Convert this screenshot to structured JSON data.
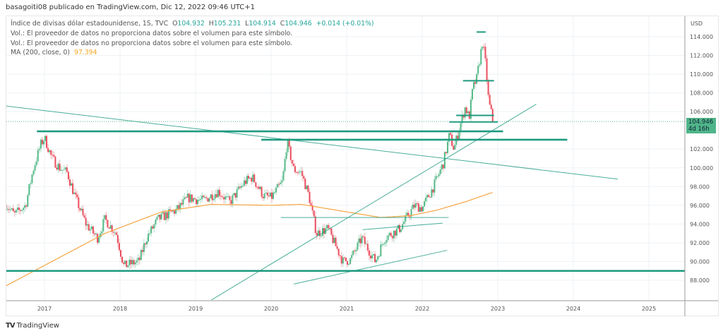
{
  "publish_line": "basagoiti08 publicado en TradingView.com, Dic 12, 2022 09:46 UTC+1",
  "legend": {
    "symbol": "Índice de divisas dólar estadounidense, 1S, TVC",
    "open_label": "O",
    "open": "104.932",
    "high_label": "H",
    "high": "105.231",
    "low_label": "L",
    "low": "104.914",
    "close_label": "C",
    "close": "104.946",
    "change": "+0.014 (+0.01%)",
    "vol_line_1": "Vol.: El proveedor de datos no proporciona datos sobre el volumen para este símbolo.",
    "vol_line_2": "Vol.: El proveedor de datos no proporciona datos sobre el volumen para este símbolo.",
    "ma_label": "MA (200, close, 0)",
    "ma_value": "97.394"
  },
  "price_badge": {
    "price": "104.946",
    "countdown": "4d 16h"
  },
  "footer": {
    "logo_mark": "TV",
    "brand": "TradingView"
  },
  "colors": {
    "up": "#53b987",
    "down": "#eb4d5c",
    "ma": "#f7a543",
    "drawing": "#1e9a80",
    "grid": "#eef2f5"
  },
  "chart_data": {
    "type": "candlestick",
    "title": "Índice de divisas dólar estadounidense, 1S, TVC",
    "currency_label": "USD",
    "timeframe": "1S",
    "ylim": [
      86.4,
      116.4
    ],
    "xlim": [
      2016.49,
      2025.5
    ],
    "y_ticks": [
      "114.000",
      "112.000",
      "110.000",
      "108.000",
      "106.000",
      "102.000",
      "100.000",
      "98.000",
      "96.000",
      "94.000",
      "92.000",
      "90.000",
      "88.000"
    ],
    "x_ticks": [
      "2017",
      "2018",
      "2019",
      "2020",
      "2021",
      "2022",
      "2023",
      "2024",
      "2025"
    ],
    "last_price": 104.946,
    "close_path": {
      "x": [
        2016.49,
        2016.6,
        2016.75,
        2016.85,
        2016.95,
        2017.0,
        2017.1,
        2017.2,
        2017.3,
        2017.4,
        2017.55,
        2017.7,
        2017.8,
        2017.95,
        2018.05,
        2018.15,
        2018.25,
        2018.35,
        2018.5,
        2018.75,
        2018.9,
        2019.1,
        2019.3,
        2019.45,
        2019.65,
        2019.75,
        2019.9,
        2020.0,
        2020.15,
        2020.21,
        2020.3,
        2020.4,
        2020.5,
        2020.6,
        2020.75,
        2020.95,
        2021.05,
        2021.2,
        2021.38,
        2021.5,
        2021.7,
        2021.9,
        2022.0,
        2022.15,
        2022.28,
        2022.36,
        2022.42,
        2022.5,
        2022.57,
        2022.62,
        2022.67,
        2022.72,
        2022.77,
        2022.8,
        2022.84,
        2022.88,
        2022.94
      ],
      "values": [
        96.1,
        95.0,
        96.0,
        99.8,
        102.5,
        103.2,
        101.0,
        100.0,
        99.5,
        97.0,
        94.0,
        92.5,
        94.5,
        93.0,
        89.5,
        89.8,
        90.0,
        92.5,
        94.5,
        95.5,
        96.8,
        96.5,
        97.5,
        96.3,
        98.5,
        99.0,
        97.0,
        96.8,
        98.5,
        102.8,
        99.8,
        99.5,
        97.0,
        93.0,
        93.5,
        90.0,
        90.2,
        92.5,
        90.0,
        92.5,
        93.5,
        96.0,
        95.7,
        98.0,
        100.5,
        103.5,
        102.0,
        104.5,
        106.5,
        105.3,
        108.5,
        109.5,
        112.0,
        113.5,
        111.0,
        107.0,
        104.95
      ]
    },
    "ma200": {
      "label": "MA (200, close, 0)",
      "x": [
        2016.49,
        2017.8,
        2018.55,
        2019.2,
        2020.0,
        2020.4,
        2021.0,
        2021.45,
        2021.85,
        2022.2,
        2022.58,
        2022.94
      ],
      "values": [
        87.4,
        93.0,
        95.3,
        96.1,
        96.0,
        96.1,
        95.3,
        94.7,
        94.9,
        95.5,
        96.4,
        97.4
      ]
    },
    "drawings": [
      {
        "kind": "hline",
        "price": 103.9,
        "from": 2016.9,
        "to": 2023.07,
        "weight": "thick"
      },
      {
        "kind": "hline",
        "price": 103.0,
        "from": 2019.87,
        "to": 2023.92,
        "weight": "thick"
      },
      {
        "kind": "hline",
        "price": 89.0,
        "from": 2016.45,
        "to": 2025.55,
        "weight": "thick"
      },
      {
        "kind": "trend",
        "p1": [
          2016.49,
          106.6
        ],
        "p2": [
          2024.59,
          98.8
        ],
        "weight": "thin"
      },
      {
        "kind": "trend",
        "p1": [
          2019.21,
          85.9
        ],
        "p2": [
          2023.51,
          106.8
        ],
        "weight": "thin"
      },
      {
        "kind": "trend",
        "p1": [
          2020.3,
          87.6
        ],
        "p2": [
          2022.33,
          91.2
        ],
        "weight": "thin"
      },
      {
        "kind": "hline",
        "price": 94.7,
        "from": 2020.13,
        "to": 2022.35,
        "weight": "thin"
      },
      {
        "kind": "trend",
        "p1": [
          2021.21,
          93.4
        ],
        "p2": [
          2022.27,
          94.1
        ],
        "weight": "thin"
      },
      {
        "kind": "hline",
        "price": 105.6,
        "from": 2022.45,
        "to": 2022.95,
        "weight": "medium"
      },
      {
        "kind": "hline",
        "price": 104.9,
        "from": 2022.36,
        "to": 2023.0,
        "weight": "medium"
      },
      {
        "kind": "hline",
        "price": 109.3,
        "from": 2022.54,
        "to": 2022.95,
        "weight": "medium"
      },
      {
        "kind": "hline",
        "price": 114.5,
        "from": 2022.72,
        "to": 2022.84,
        "weight": "medium"
      }
    ]
  }
}
